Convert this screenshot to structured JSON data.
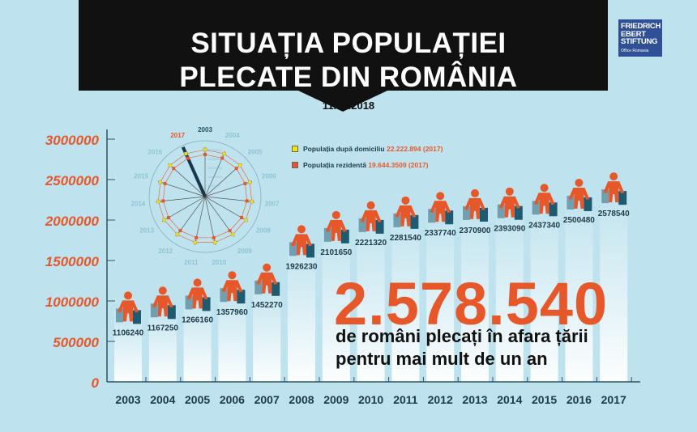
{
  "header": {
    "title_line1": "SITUAȚIA POPULAȚIEI",
    "title_line2": "PLECATE DIN ROMÂNIA",
    "date": "11.02.2018"
  },
  "logo": {
    "lines": [
      "FRIEDRICH",
      "EBERT",
      "STIFTUNG"
    ],
    "sub": "Office Romania"
  },
  "headline": {
    "number": "2.578.540",
    "line1": "de români plecați în afara țării",
    "line2": "pentru mai mult de un an"
  },
  "legend": [
    {
      "label": "Populația după domiciliu",
      "value": "22.222.894 (2017)",
      "color": "#f5e400"
    },
    {
      "label": "Populația rezidentă",
      "value": "19.644.3509 (2017)",
      "color": "#e6582a"
    }
  ],
  "colors": {
    "accent": "#e6582a",
    "banner": "#111111",
    "axis": "#2c5364",
    "background": "#bfe3ee"
  },
  "chart_data": [
    {
      "type": "bar",
      "title": "",
      "xlabel": "",
      "ylabel": "",
      "ylim": [
        0,
        3000000
      ],
      "yticks": [
        "0",
        "500000",
        "1000000",
        "1500000",
        "2000000",
        "2500000",
        "3000000"
      ],
      "categories": [
        "2003",
        "2004",
        "2005",
        "2006",
        "2007",
        "2008",
        "2009",
        "2010",
        "2011",
        "2012",
        "2013",
        "2014",
        "2015",
        "2016",
        "2017"
      ],
      "values": [
        1106240,
        1167250,
        1266160,
        1357960,
        1452270,
        1926230,
        2101650,
        2221320,
        2281540,
        2337740,
        2370900,
        2393090,
        2437340,
        2500480,
        2578540
      ],
      "data_labels": [
        "1106240",
        "1167250",
        "1266160",
        "1357960",
        "1452270",
        "1926230",
        "2101650",
        "2221320",
        "2281540",
        "2337740",
        "2370900",
        "2393090",
        "2437340",
        "2500480",
        "2578540"
      ]
    },
    {
      "type": "radar",
      "categories": [
        "2003",
        "2004",
        "2005",
        "2006",
        "2007",
        "2008",
        "2009",
        "2010",
        "2011",
        "2012",
        "2013",
        "2014",
        "2015",
        "2016",
        "2017"
      ],
      "highlight": "2017",
      "rticks": [
        "5000000",
        "10000000",
        "15000000",
        "20000000",
        "25000000"
      ],
      "series": [
        {
          "name": "Populația după domiciliu",
          "color": "#f5e400"
        },
        {
          "name": "Populația rezidentă",
          "color": "#e6582a"
        }
      ]
    }
  ]
}
